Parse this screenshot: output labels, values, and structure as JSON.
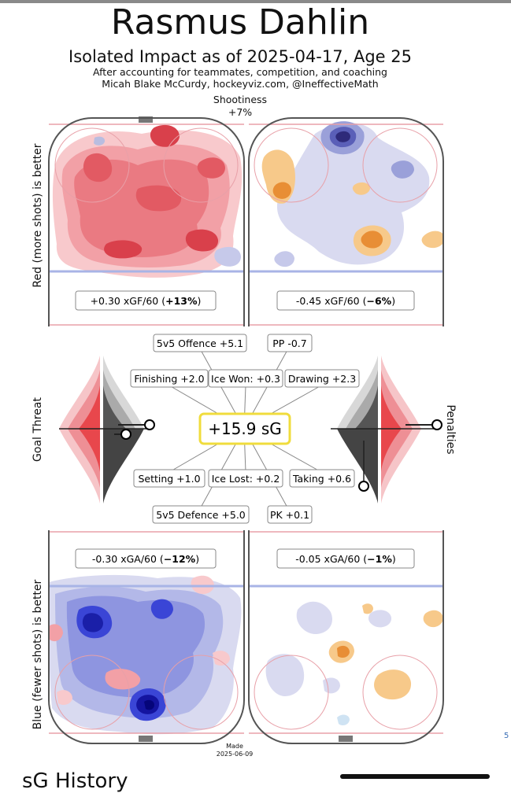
{
  "header": {
    "player": "Rasmus Dahlin",
    "subtitle": "Isolated Impact as of 2025-04-17, Age 25",
    "note1": "After accounting for teammates, competition, and coaching",
    "note2": "Micah Blake McCurdy, hockeyviz.com, @IneffectiveMath",
    "shootiness_label": "Shootiness",
    "shootiness_value": "+7%"
  },
  "axis_labels": {
    "top_left": "Red (more shots) is better",
    "bottom_left": "Blue (fewer shots) is better",
    "middle_left": "Goal Threat",
    "middle_right": "Penalties"
  },
  "rinks": {
    "offence_even": "+0.30 xGF/60 (",
    "offence_even_pct": "+13%",
    "offence_pp": "-0.45 xGF/60 (",
    "offence_pp_pct": "−6%",
    "defence_even": "-0.30 xGA/60 (",
    "defence_even_pct": "−12%",
    "defence_pk": "-0.05 xGA/60 (",
    "defence_pk_pct": "−1%",
    "close_paren": ")"
  },
  "center": {
    "total": "+15.9 sG",
    "components": {
      "offence_5v5": "5v5 Offence +5.1",
      "pp": "PP -0.7",
      "finishing": "Finishing +2.0",
      "ice_won": "Ice Won: +0.3",
      "drawing": "Drawing +2.3",
      "setting": "Setting +1.0",
      "ice_lost": "Ice Lost: +0.2",
      "taking": "Taking +0.6",
      "defence_5v5": "5v5 Defence +5.0",
      "pk": "PK +0.1"
    }
  },
  "footer": {
    "made_label": "Made",
    "made_date": "2025-06-09",
    "section_heading": "sG History",
    "right_mark": "5"
  },
  "colors": {
    "positive": "#e8474c",
    "negative": "#3a45d6",
    "gold": "#f2a848",
    "lavender": "#b9bde0",
    "rink_line_red": "#e8a0a8",
    "rink_line_blue": "#a8b4e6",
    "highlight_box": "#f0dc3c"
  }
}
